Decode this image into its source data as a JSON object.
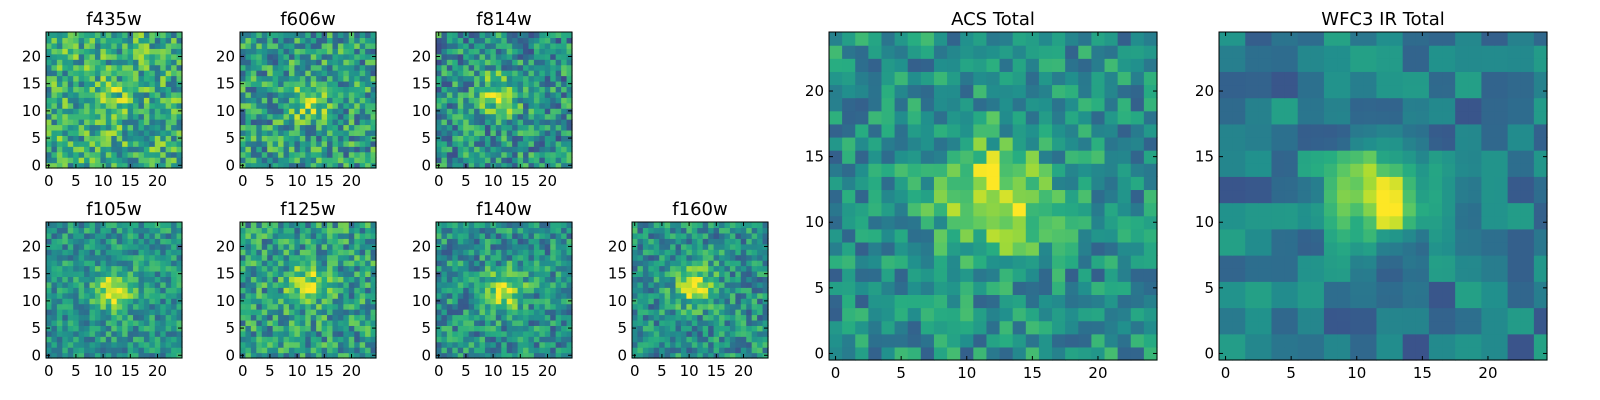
{
  "chart_data": [
    {
      "type": "heatmap",
      "title": "f435w",
      "grid_size": 25,
      "xticks": [
        "0",
        "5",
        "10",
        "15",
        "20"
      ],
      "yticks": [
        "0",
        "5",
        "10",
        "15",
        "20"
      ],
      "xlim": [
        -0.5,
        24.5
      ],
      "ylim": [
        -0.5,
        24.5
      ],
      "peak": [
        12,
        12
      ],
      "colormap": "viridis"
    },
    {
      "type": "heatmap",
      "title": "f606w",
      "grid_size": 25,
      "xticks": [
        "0",
        "5",
        "10",
        "15",
        "20"
      ],
      "yticks": [
        "0",
        "5",
        "10",
        "15",
        "20"
      ],
      "xlim": [
        -0.5,
        24.5
      ],
      "ylim": [
        -0.5,
        24.5
      ],
      "peak": [
        12,
        12
      ],
      "colormap": "viridis"
    },
    {
      "type": "heatmap",
      "title": "f814w",
      "grid_size": 25,
      "xticks": [
        "0",
        "5",
        "10",
        "15",
        "20"
      ],
      "yticks": [
        "0",
        "5",
        "10",
        "15",
        "20"
      ],
      "xlim": [
        -0.5,
        24.5
      ],
      "ylim": [
        -0.5,
        24.5
      ],
      "peak": [
        11,
        13
      ],
      "colormap": "viridis"
    },
    {
      "type": "heatmap",
      "title": "f105w",
      "grid_size": 25,
      "xticks": [
        "0",
        "5",
        "10",
        "15",
        "20"
      ],
      "yticks": [
        "0",
        "5",
        "10",
        "15",
        "20"
      ],
      "xlim": [
        -0.5,
        24.5
      ],
      "ylim": [
        -0.5,
        24.5
      ],
      "peak": [
        12,
        12
      ],
      "colormap": "viridis"
    },
    {
      "type": "heatmap",
      "title": "f125w",
      "grid_size": 25,
      "xticks": [
        "0",
        "5",
        "10",
        "15",
        "20"
      ],
      "yticks": [
        "0",
        "5",
        "10",
        "15",
        "20"
      ],
      "xlim": [
        -0.5,
        24.5
      ],
      "ylim": [
        -0.5,
        24.5
      ],
      "peak": [
        12,
        13
      ],
      "colormap": "viridis"
    },
    {
      "type": "heatmap",
      "title": "f140w",
      "grid_size": 25,
      "xticks": [
        "0",
        "5",
        "10",
        "15",
        "20"
      ],
      "yticks": [
        "0",
        "5",
        "10",
        "15",
        "20"
      ],
      "xlim": [
        -0.5,
        24.5
      ],
      "ylim": [
        -0.5,
        24.5
      ],
      "peak": [
        12,
        12
      ],
      "colormap": "viridis"
    },
    {
      "type": "heatmap",
      "title": "f160w",
      "grid_size": 25,
      "xticks": [
        "0",
        "5",
        "10",
        "15",
        "20"
      ],
      "yticks": [
        "0",
        "5",
        "10",
        "15",
        "20"
      ],
      "xlim": [
        -0.5,
        24.5
      ],
      "ylim": [
        -0.5,
        24.5
      ],
      "peak": [
        11,
        13
      ],
      "colormap": "viridis"
    },
    {
      "type": "heatmap",
      "title": "ACS Total",
      "grid_size": 25,
      "xticks": [
        "0",
        "5",
        "10",
        "15",
        "20"
      ],
      "yticks": [
        "0",
        "5",
        "10",
        "15",
        "20"
      ],
      "xlim": [
        -0.5,
        24.5
      ],
      "ylim": [
        -0.5,
        24.5
      ],
      "peak": [
        12,
        12
      ],
      "colormap": "viridis"
    },
    {
      "type": "heatmap",
      "title": "WFC3 IR Total",
      "grid_size": 25,
      "xticks": [
        "0",
        "5",
        "10",
        "15",
        "20"
      ],
      "yticks": [
        "0",
        "5",
        "10",
        "15",
        "20"
      ],
      "xlim": [
        -0.5,
        24.5
      ],
      "ylim": [
        -0.5,
        24.5
      ],
      "peak": [
        12,
        12
      ],
      "colormap": "viridis"
    }
  ],
  "colors": {
    "background": "#ffffff",
    "axis": "#000000",
    "text": "#000000"
  }
}
